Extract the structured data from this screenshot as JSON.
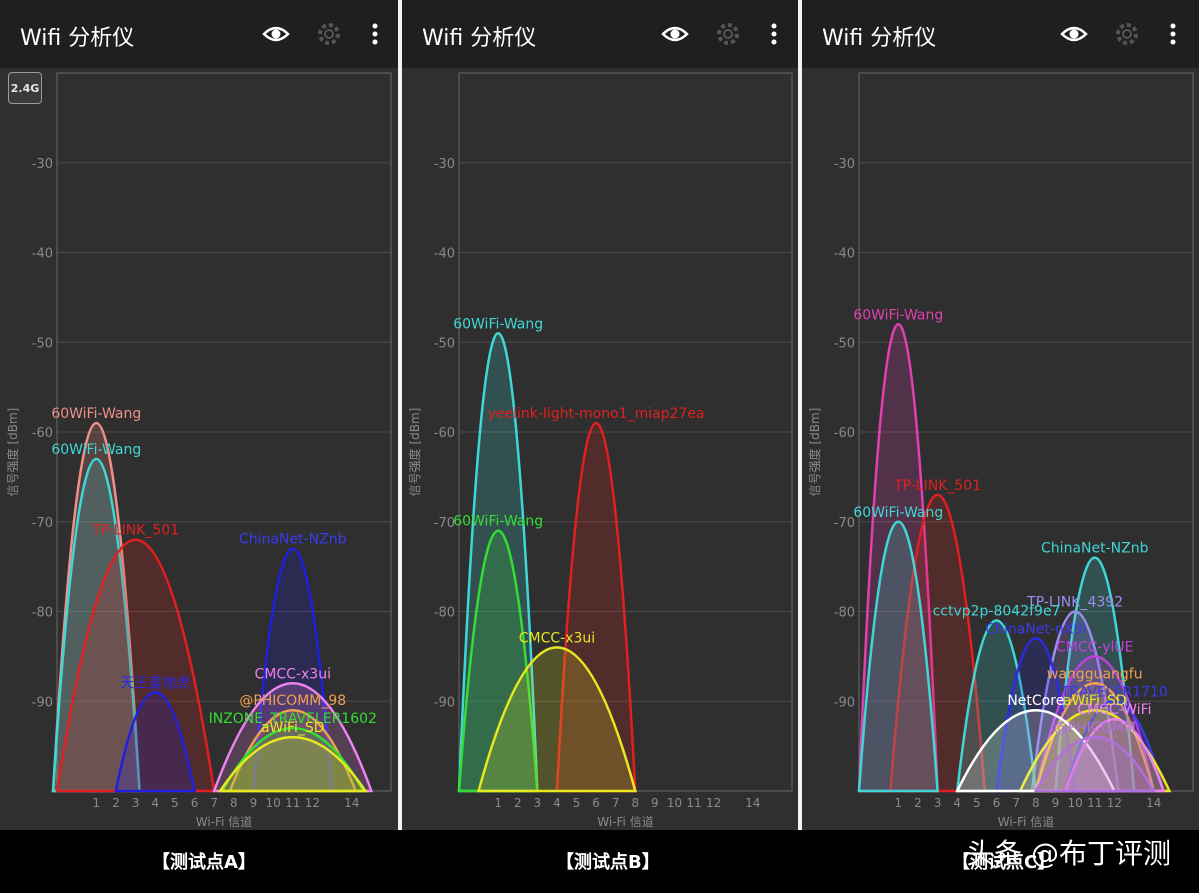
{
  "caption_font_note": "",
  "panels": [
    {
      "app_title": "Wifi 分析仪",
      "band_button": "2.4G",
      "caption": "【测试点A】",
      "chart_data": {
        "type": "area",
        "xlabel": "Wi-Fi 信道",
        "ylabel": "信号强度 [dBm]",
        "x_ticks": [
          1,
          2,
          3,
          4,
          5,
          6,
          7,
          8,
          9,
          10,
          11,
          12,
          14
        ],
        "y_ticks": [
          -30,
          -40,
          -50,
          -60,
          -70,
          -80,
          -90
        ],
        "xlim": [
          -1,
          16
        ],
        "ylim": [
          -100,
          -20
        ],
        "series": [
          {
            "name": "360WiFi-Wang",
            "label": "60WiFi-Wang",
            "channel": 1,
            "dbm": -59,
            "half_width": 2.2,
            "color": "#f0908a",
            "label_color": "#f0908a"
          },
          {
            "name": "360WiFi-Wang",
            "label": "60WiFi-Wang",
            "channel": 1,
            "dbm": -63,
            "half_width": 2.2,
            "color": "#3fd6d6",
            "label_color": "#3fd6d6"
          },
          {
            "name": "TP-LINK_501",
            "label": "TP-LINK_501",
            "channel": 3,
            "dbm": -72,
            "half_width": 4,
            "color": "#e02020",
            "label_color": "#e02020"
          },
          {
            "name": "天王盖地虎",
            "label": "天王盖地虎",
            "channel": 4,
            "dbm": -89,
            "half_width": 2,
            "color": "#2020e0",
            "label_color": "#2a2ae8"
          },
          {
            "name": "ChinaNet-NZnb",
            "label": "ChinaNet-NZnb",
            "channel": 11,
            "dbm": -73,
            "half_width": 2,
            "color": "#2020e0",
            "label_color": "#3a3af0"
          },
          {
            "name": "CMCC-x3ui",
            "label": "CMCC-x3ui",
            "channel": 11,
            "dbm": -88,
            "half_width": 4,
            "color": "#ee82ee",
            "label_color": "#ee82ee"
          },
          {
            "name": "@PHICOMM_98",
            "label": "@PHICOMM_98",
            "channel": 11,
            "dbm": -91,
            "half_width": 3.2,
            "color": "#f0a050",
            "label_color": "#f0a050"
          },
          {
            "name": "MINZONE_TRAVELER1602",
            "label": "INZONE_TRAVELER1602",
            "channel": 11,
            "dbm": -93,
            "half_width": 3.6,
            "color": "#33dd33",
            "label_color": "#33dd33"
          },
          {
            "name": "aWiFi_SD",
            "label": "aWiFi_SD",
            "channel": 11,
            "dbm": -94,
            "half_width": 3.7,
            "color": "#e8e820",
            "label_color": "#e8e820"
          }
        ]
      }
    },
    {
      "app_title": "Wifi 分析仪",
      "caption": "【测试点B】",
      "chart_data": {
        "type": "area",
        "xlabel": "Wi-Fi 信道",
        "ylabel": "信号强度 [dBm]",
        "x_ticks": [
          1,
          2,
          3,
          4,
          5,
          6,
          7,
          8,
          9,
          10,
          11,
          12,
          14
        ],
        "y_ticks": [
          -30,
          -40,
          -50,
          -60,
          -70,
          -80,
          -90
        ],
        "xlim": [
          -1,
          16
        ],
        "ylim": [
          -100,
          -20
        ],
        "series": [
          {
            "name": "360WiFi-Wang",
            "label": "60WiFi-Wang",
            "channel": 1,
            "dbm": -49,
            "half_width": 2,
            "color": "#3fd6d6",
            "label_color": "#3fd6d6"
          },
          {
            "name": "yeelink-light-mono1_miap27ea",
            "label": "yeelink-light-mono1_miap27ea",
            "channel": 6,
            "dbm": -59,
            "half_width": 2,
            "color": "#e02020",
            "label_color": "#e02020"
          },
          {
            "name": "360WiFi-Wang",
            "label": "60WiFi-Wang",
            "channel": 1,
            "dbm": -71,
            "half_width": 2,
            "color": "#33dd33",
            "label_color": "#33dd33"
          },
          {
            "name": "CMCC-x3ui",
            "label": "CMCC-x3ui",
            "channel": 4,
            "dbm": -84,
            "half_width": 4,
            "color": "#e8e820",
            "label_color": "#e8e820"
          }
        ]
      }
    },
    {
      "app_title": "Wifi 分析仪",
      "caption": "【测试点C】",
      "chart_data": {
        "type": "area",
        "xlabel": "Wi-Fi 信道",
        "ylabel": "信号强度 [dBm]",
        "x_ticks": [
          1,
          2,
          3,
          4,
          5,
          6,
          7,
          8,
          9,
          10,
          11,
          12,
          14
        ],
        "y_ticks": [
          -30,
          -40,
          -50,
          -60,
          -70,
          -80,
          -90
        ],
        "xlim": [
          -1,
          16
        ],
        "ylim": [
          -100,
          -20
        ],
        "series": [
          {
            "name": "360WiFi-Wang",
            "label": "60WiFi-Wang",
            "channel": 1,
            "dbm": -48,
            "half_width": 2,
            "color": "#e040b0",
            "label_color": "#e040b0"
          },
          {
            "name": "TP-LINK_501",
            "label": "TP-LINK_501",
            "channel": 3,
            "dbm": -67,
            "half_width": 2.4,
            "color": "#e02020",
            "label_color": "#e02020"
          },
          {
            "name": "360WiFi-Wang",
            "label": "60WiFi-Wang",
            "channel": 1,
            "dbm": -70,
            "half_width": 2,
            "color": "#3fd6d6",
            "label_color": "#3fd6d6"
          },
          {
            "name": "ChinaNet-NZnb",
            "label": "ChinaNet-NZnb",
            "channel": 11,
            "dbm": -74,
            "half_width": 2,
            "color": "#3fd6d6",
            "label_color": "#3fd6d6"
          },
          {
            "name": "TP-LINK_4392",
            "label": "TP-LINK_4392",
            "channel": 10,
            "dbm": -80,
            "half_width": 2.2,
            "color": "#9a8ef0",
            "label_color": "#9a8ef0"
          },
          {
            "name": "cctvp2p-8042f9e7",
            "label": "cctvp2p-8042f9e7",
            "channel": 6,
            "dbm": -81,
            "half_width": 2,
            "color": "#3fd6d6",
            "label_color": "#3fd6d6"
          },
          {
            "name": "ChinaNet-nX9i",
            "label": "ChinaNet-nX9i",
            "channel": 8,
            "dbm": -83,
            "half_width": 2,
            "color": "#2a2ae8",
            "label_color": "#3a3af0"
          },
          {
            "name": "CMCC-ylUE",
            "label": "CMCC-ylUE",
            "channel": 11,
            "dbm": -85,
            "half_width": 3,
            "color": "#c040e0",
            "label_color": "#c040e0"
          },
          {
            "name": "wangguangfu",
            "label": "wangguangfu",
            "channel": 11,
            "dbm": -88,
            "half_width": 3,
            "color": "#f0a050",
            "label_color": "#f0a050"
          },
          {
            "name": "TRAVELER1710",
            "label": "TRAVELER1710",
            "channel": 12,
            "dbm": -90,
            "half_width": 2.5,
            "color": "#3a3af0",
            "label_color": "#3a3af0"
          },
          {
            "name": "aWiFi_SD",
            "label": "aWiFi_SD",
            "channel": 11,
            "dbm": -91,
            "half_width": 3.8,
            "color": "#e8e820",
            "label_color": "#e8e820"
          },
          {
            "name": "NetCore",
            "label": "NetCore",
            "channel": 8,
            "dbm": -91,
            "half_width": 4,
            "color": "#ffffff",
            "label_color": "#ffffff"
          },
          {
            "name": "CMCC-WiFi",
            "label": "CMCC-WiFi",
            "channel": 12,
            "dbm": -92,
            "half_width": 2.5,
            "color": "#ee82ee",
            "label_color": "#ee82ee"
          },
          {
            "name": "@PHICOMM",
            "label": "@PHICOMM",
            "channel": 11,
            "dbm": -94,
            "half_width": 3,
            "color": "#b070e0",
            "label_color": "#b070e0"
          }
        ]
      }
    }
  ],
  "watermark": "头条 @布丁评测"
}
